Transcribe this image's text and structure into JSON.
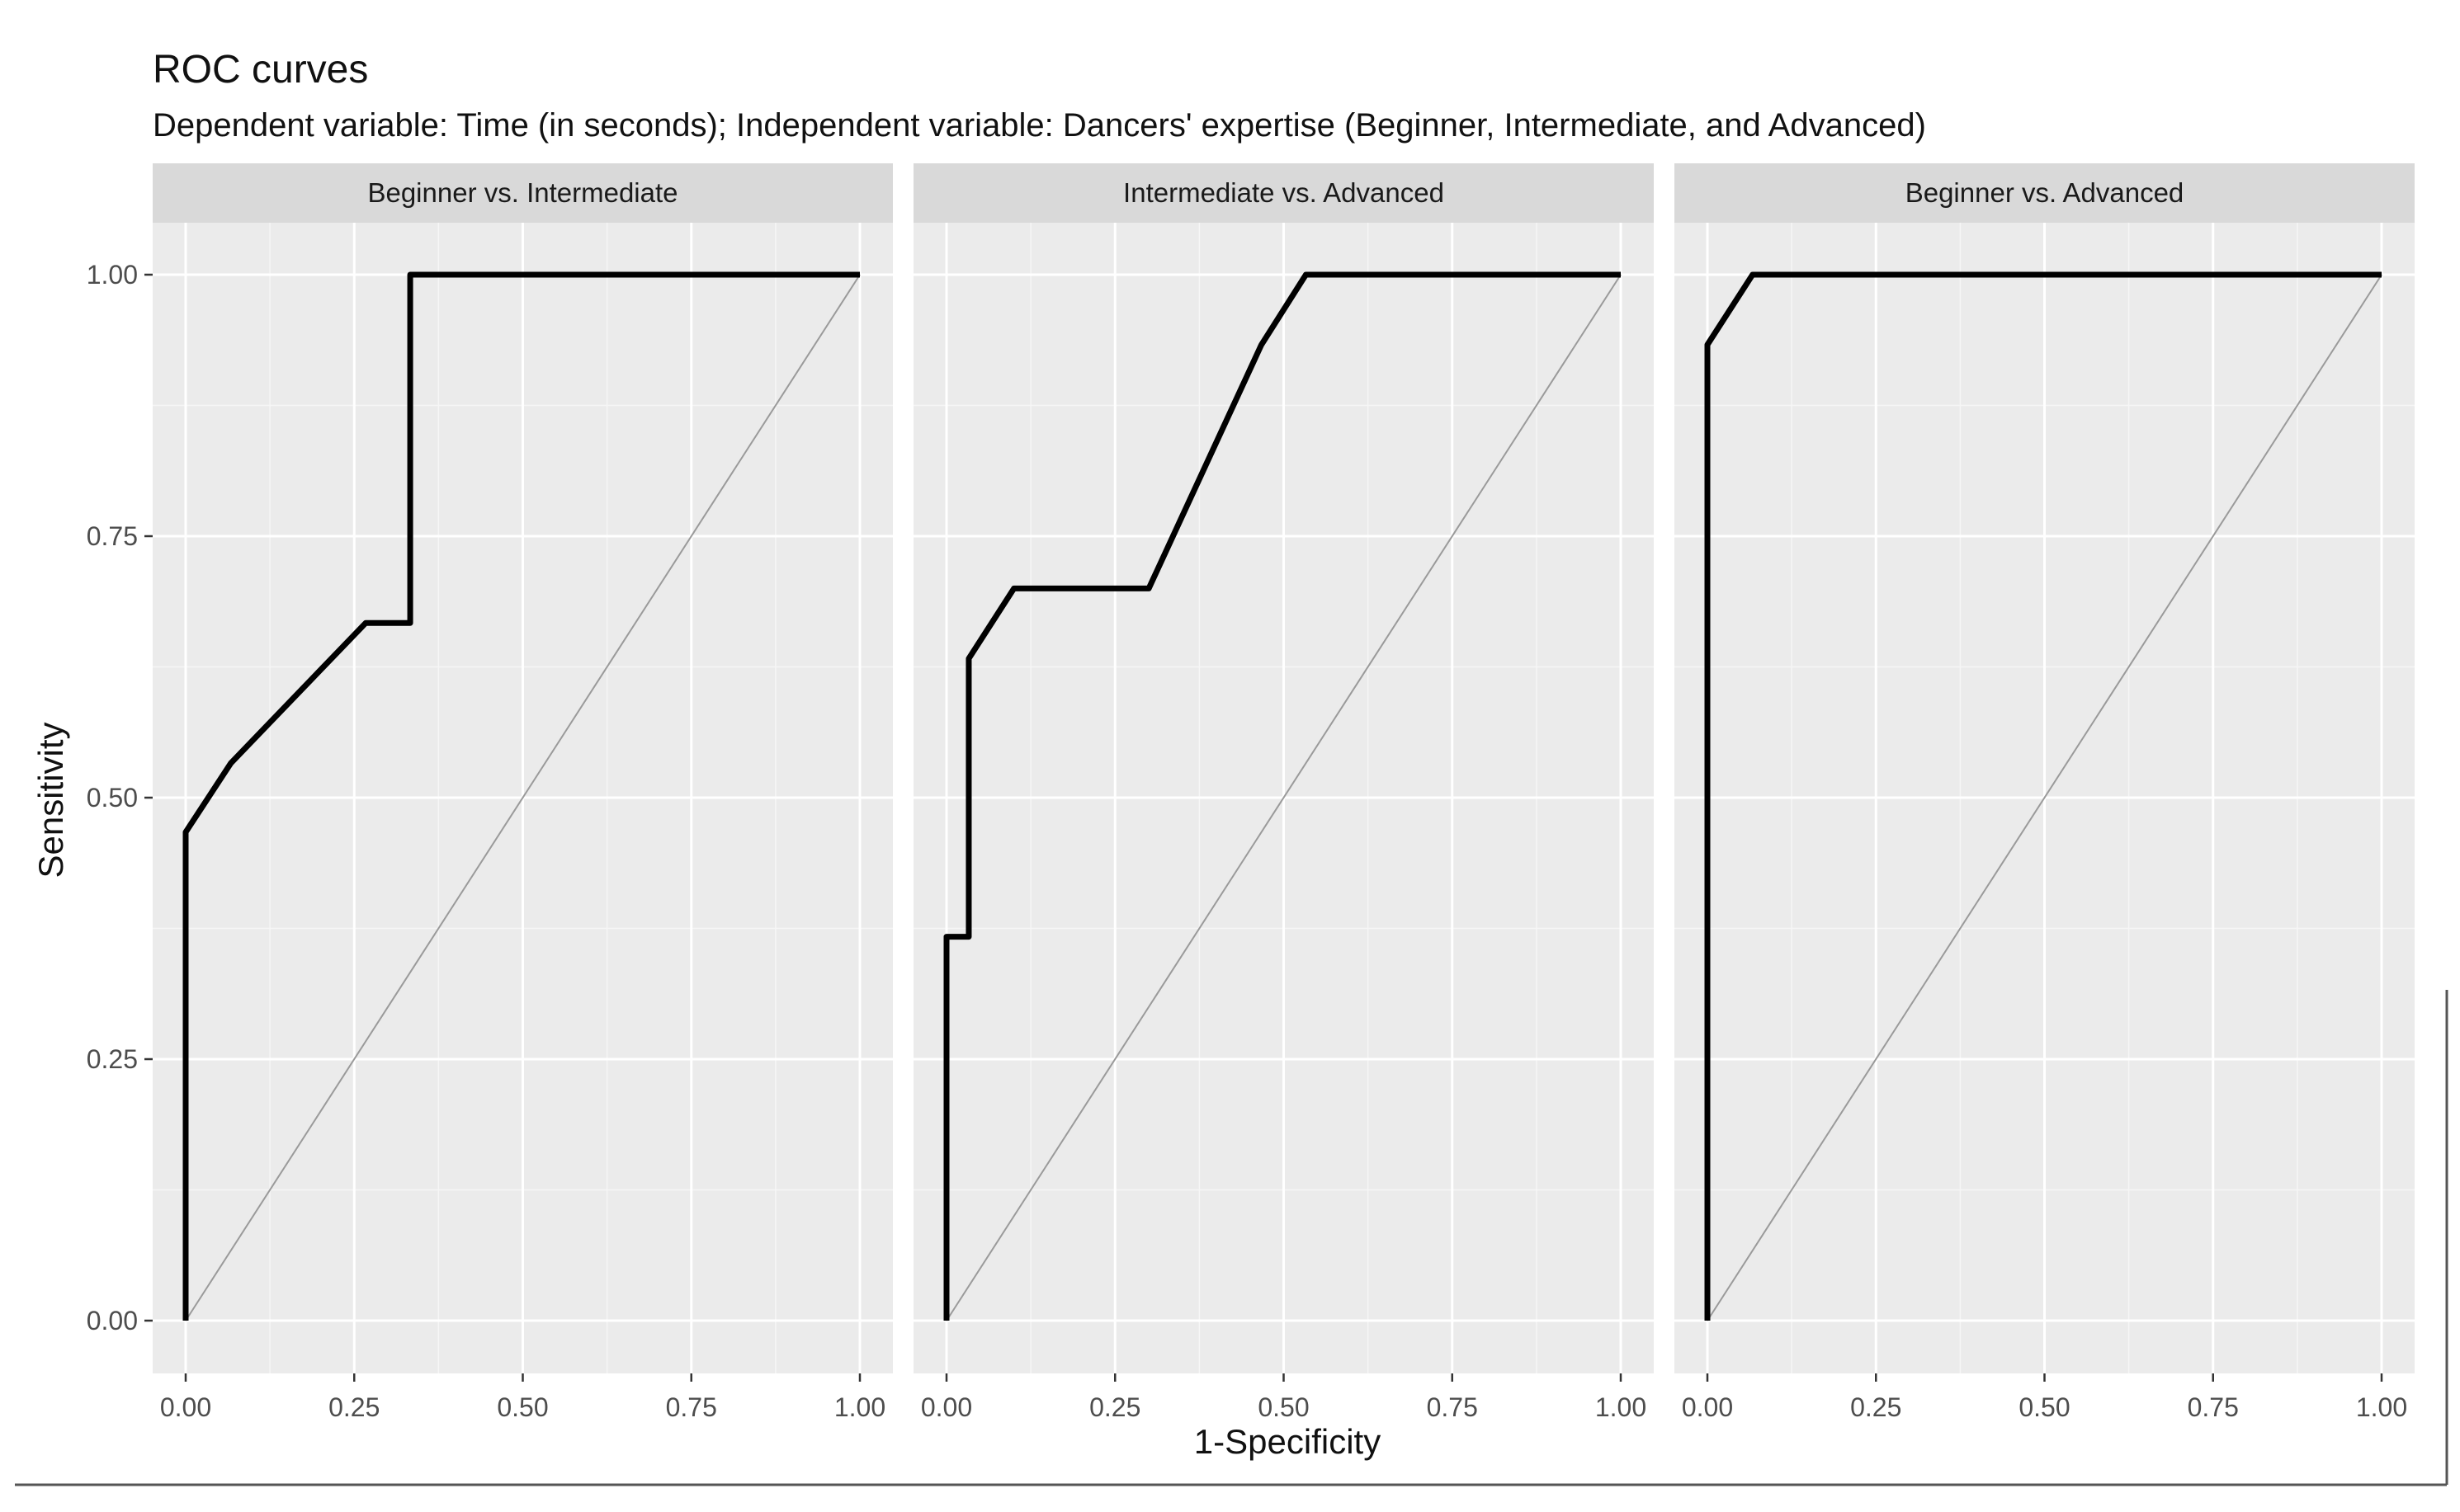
{
  "chart_data": {
    "type": "line",
    "title": "ROC curves",
    "subtitle": "Dependent variable: Time (in seconds); Independent variable: Dancers' expertise (Beginner, Intermediate, and Advanced)",
    "xlabel": "1-Specificity",
    "ylabel": "Sensitivity",
    "xlim": [
      0,
      1
    ],
    "ylim": [
      0,
      1
    ],
    "xticks": [
      "0.00",
      "0.25",
      "0.50",
      "0.75",
      "1.00"
    ],
    "yticks": [
      "0.00",
      "0.25",
      "0.50",
      "0.75",
      "1.00"
    ],
    "grid": true,
    "panels": [
      {
        "strip": "Beginner vs. Intermediate",
        "roc": {
          "x": [
            0.0,
            0.0,
            0.067,
            0.167,
            0.267,
            0.333,
            0.333,
            1.0
          ],
          "y": [
            0.0,
            0.467,
            0.533,
            0.6,
            0.667,
            0.667,
            1.0,
            1.0
          ]
        },
        "reference": {
          "x": [
            0,
            1
          ],
          "y": [
            0,
            1
          ]
        }
      },
      {
        "strip": "Intermediate vs. Advanced",
        "roc": {
          "x": [
            0.0,
            0.0,
            0.033,
            0.033,
            0.1,
            0.3,
            0.467,
            0.533,
            1.0
          ],
          "y": [
            0.0,
            0.367,
            0.367,
            0.633,
            0.7,
            0.7,
            0.933,
            1.0,
            1.0
          ]
        },
        "reference": {
          "x": [
            0,
            1
          ],
          "y": [
            0,
            1
          ]
        }
      },
      {
        "strip": "Beginner vs. Advanced",
        "roc": {
          "x": [
            0.0,
            0.0,
            0.067,
            1.0
          ],
          "y": [
            0.0,
            0.933,
            1.0,
            1.0
          ]
        },
        "reference": {
          "x": [
            0,
            1
          ],
          "y": [
            0,
            1
          ]
        }
      }
    ]
  }
}
